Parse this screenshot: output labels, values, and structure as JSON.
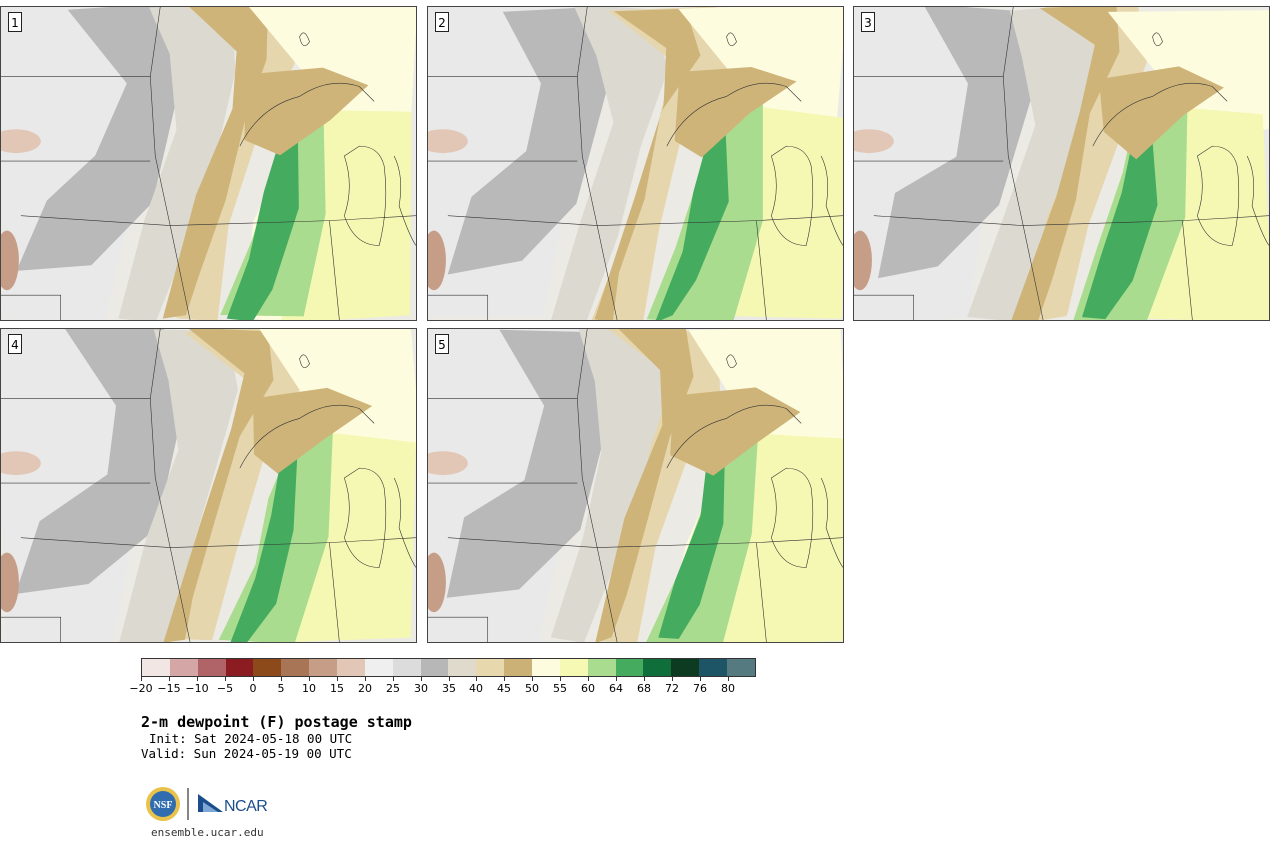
{
  "members": [
    {
      "label": "1",
      "variant": 0
    },
    {
      "label": "2",
      "variant": 1
    },
    {
      "label": "3",
      "variant": 2
    },
    {
      "label": "4",
      "variant": 3
    },
    {
      "label": "5",
      "variant": 4
    }
  ],
  "colorbar": {
    "colors": [
      "#f2e6e4",
      "#d4a6a6",
      "#b06468",
      "#8a1c22",
      "#8c4a1a",
      "#a87656",
      "#c69e88",
      "#e2c6b6",
      "#efefef",
      "#dcdcdc",
      "#b7b7b7",
      "#dfdacb",
      "#e7d8ad",
      "#ccb176",
      "#fefcdf",
      "#f5f9b4",
      "#a9dc8f",
      "#45ab5e",
      "#0f6e3a",
      "#0c3b22",
      "#1d5566",
      "#557b80"
    ],
    "ticks": [
      "−20",
      "−15",
      "−10",
      "−5",
      "0",
      "5",
      "10",
      "15",
      "20",
      "25",
      "30",
      "35",
      "40",
      "45",
      "50",
      "55",
      "60",
      "64",
      "68",
      "72",
      "76",
      "80"
    ]
  },
  "title": "2-m dewpoint (F) postage stamp",
  "init": "Init: Sat 2024-05-18 00 UTC",
  "valid": "Valid: Sun 2024-05-19 00 UTC",
  "logos": {
    "nsf": "NSF",
    "ncar": "NCAR"
  },
  "site": "ensemble.ucar.edu"
}
